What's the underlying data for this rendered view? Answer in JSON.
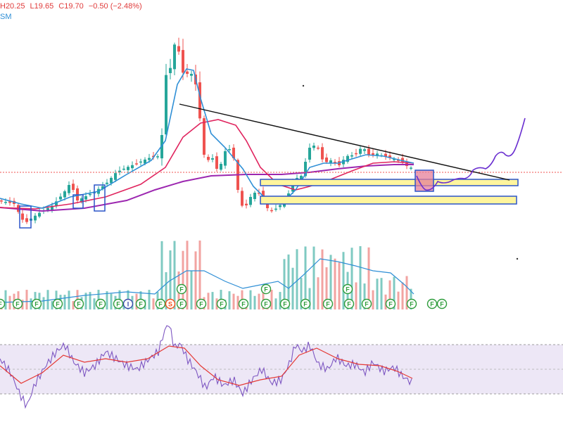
{
  "header": {
    "high": "H20.25",
    "low": "L19.65",
    "close": "C19.70",
    "change": "−0.50 (−2.48%)",
    "indicator_suffix": "SM"
  },
  "colors": {
    "up": "#26a69a",
    "down": "#ef5350",
    "ma_fast": "#2f8fd6",
    "ma_mid": "#e0245e",
    "ma_slow": "#9c27b0",
    "trendline": "#111111",
    "zone_fill": "#fff59d",
    "zone_border": "#2b55c9",
    "marker_box": "#2b55c9",
    "projection": "#6a2fd0",
    "rsi": "#7e57c2",
    "rsi_ma": "#e53935",
    "rsi_band": "#ede7f6",
    "flag": "#2e9c3b",
    "flag_i": "#3949ab",
    "flag_s": "#f4511e"
  },
  "flags": [
    {
      "label": "F"
    },
    {
      "label": "F"
    },
    {
      "label": "F"
    },
    {
      "label": "F"
    },
    {
      "label": "F"
    },
    {
      "label": "F"
    },
    {
      "label": "F"
    },
    {
      "label": "I"
    },
    {
      "label": "F"
    },
    {
      "label": "F"
    },
    {
      "label": "S"
    },
    {
      "label": "F"
    },
    {
      "label": "F"
    },
    {
      "label": "F"
    },
    {
      "label": "F"
    },
    {
      "label": "F"
    },
    {
      "label": "F"
    },
    {
      "label": "F"
    },
    {
      "label": "F"
    },
    {
      "label": "F"
    },
    {
      "label": "F"
    },
    {
      "label": "F"
    },
    {
      "label": "F"
    },
    {
      "label": "F"
    },
    {
      "label": "F"
    },
    {
      "label": "F"
    },
    {
      "label": "F"
    },
    {
      "label": "F"
    }
  ],
  "chart_data": {
    "type": "candlestick",
    "legend": "none",
    "grid": false,
    "price": {
      "last_close": 19.7,
      "high": 20.25,
      "low": 19.65,
      "change": -0.5,
      "change_pct": -2.48
    },
    "trendline": "descending line from spike high towards apex at right",
    "support_zones": [
      {
        "name": "upper zone"
      },
      {
        "name": "lower zone"
      }
    ],
    "projection": "dip into upper zone then rally upward",
    "panels": [
      "price",
      "volume",
      "rsi"
    ]
  }
}
